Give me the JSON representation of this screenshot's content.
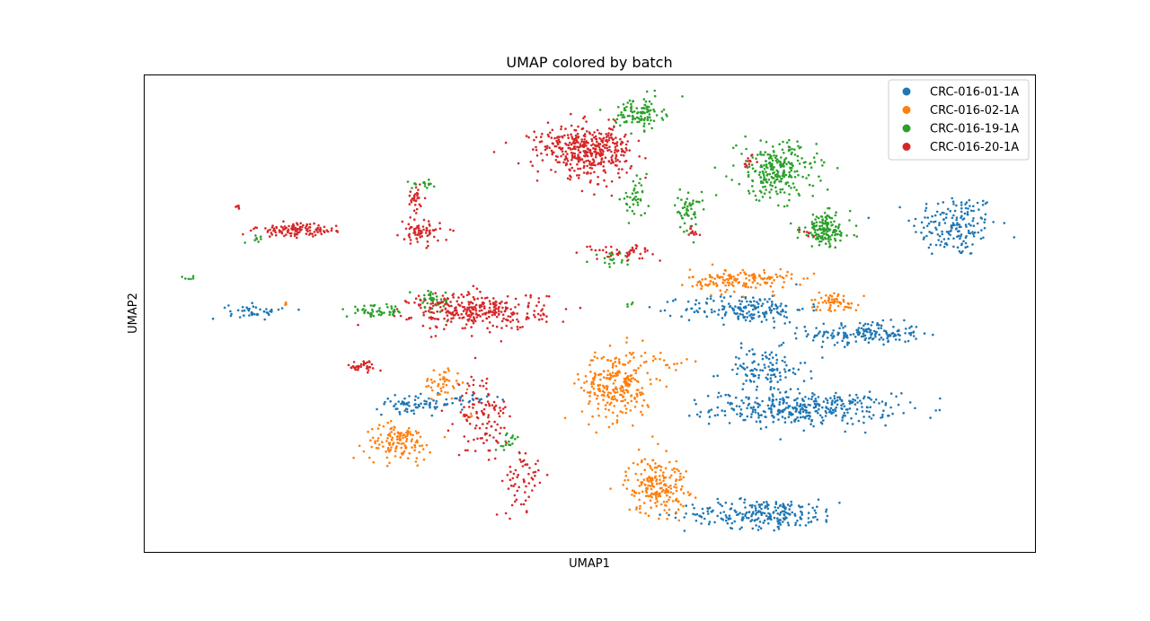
{
  "chart_data": {
    "type": "scatter",
    "title": "UMAP colored by batch",
    "xlabel": "UMAP1",
    "ylabel": "UMAP2",
    "xticks": false,
    "yticks": false,
    "grid": false,
    "legend_position": "top-right",
    "xlim": [
      0,
      100
    ],
    "ylim": [
      0,
      100
    ],
    "series": [
      {
        "name": "CRC-016-01-1A",
        "color": "#1f77b4",
        "clusters": [
          {
            "x": 91.0,
            "y": 68.5,
            "sx": 3.2,
            "sy": 4.5,
            "n": 170
          },
          {
            "x": 81.0,
            "y": 45.8,
            "sx": 4.2,
            "sy": 1.6,
            "n": 170
          },
          {
            "x": 74.0,
            "y": 30.0,
            "sx": 6.8,
            "sy": 2.2,
            "n": 360
          },
          {
            "x": 69.5,
            "y": 38.0,
            "sx": 3.2,
            "sy": 3.2,
            "n": 120
          },
          {
            "x": 67.5,
            "y": 51.0,
            "sx": 4.6,
            "sy": 2.0,
            "n": 180
          },
          {
            "x": 69.5,
            "y": 8.0,
            "sx": 5.8,
            "sy": 2.0,
            "n": 240
          },
          {
            "x": 12.5,
            "y": 50.5,
            "sx": 2.0,
            "sy": 1.0,
            "n": 45
          },
          {
            "x": 30.5,
            "y": 31.0,
            "sx": 3.0,
            "sy": 1.2,
            "n": 75
          },
          {
            "x": 36.5,
            "y": 32.0,
            "sx": 2.5,
            "sy": 0.5,
            "n": 20
          }
        ]
      },
      {
        "name": "CRC-016-02-1A",
        "color": "#ff7f0e",
        "clusters": [
          {
            "x": 53.0,
            "y": 35.0,
            "sx": 2.6,
            "sy": 5.0,
            "n": 260
          },
          {
            "x": 59.0,
            "y": 40.0,
            "sx": 1.5,
            "sy": 1.0,
            "n": 15
          },
          {
            "x": 57.5,
            "y": 14.0,
            "sx": 2.3,
            "sy": 4.0,
            "n": 200
          },
          {
            "x": 67.0,
            "y": 57.0,
            "sx": 3.8,
            "sy": 1.6,
            "n": 150
          },
          {
            "x": 77.5,
            "y": 52.5,
            "sx": 1.8,
            "sy": 1.4,
            "n": 60
          },
          {
            "x": 28.5,
            "y": 23.0,
            "sx": 2.5,
            "sy": 2.5,
            "n": 130
          },
          {
            "x": 33.5,
            "y": 35.5,
            "sx": 1.4,
            "sy": 2.2,
            "n": 45
          },
          {
            "x": 36.5,
            "y": 28.5,
            "sx": 0.6,
            "sy": 0.5,
            "n": 8
          },
          {
            "x": 15.8,
            "y": 52.0,
            "sx": 0.3,
            "sy": 0.3,
            "n": 4
          }
        ]
      },
      {
        "name": "CRC-016-19-1A",
        "color": "#2ca02c",
        "clusters": [
          {
            "x": 55.5,
            "y": 92.0,
            "sx": 1.8,
            "sy": 2.2,
            "n": 110
          },
          {
            "x": 71.0,
            "y": 80.0,
            "sx": 3.0,
            "sy": 4.0,
            "n": 250
          },
          {
            "x": 76.5,
            "y": 67.5,
            "sx": 1.9,
            "sy": 2.4,
            "n": 150
          },
          {
            "x": 61.0,
            "y": 71.5,
            "sx": 1.0,
            "sy": 2.8,
            "n": 55
          },
          {
            "x": 55.0,
            "y": 74.0,
            "sx": 1.0,
            "sy": 2.5,
            "n": 40
          },
          {
            "x": 52.5,
            "y": 61.5,
            "sx": 1.5,
            "sy": 0.8,
            "n": 20
          },
          {
            "x": 32.5,
            "y": 52.5,
            "sx": 1.2,
            "sy": 1.6,
            "n": 50
          },
          {
            "x": 26.0,
            "y": 50.5,
            "sx": 2.2,
            "sy": 0.8,
            "n": 50
          },
          {
            "x": 31.5,
            "y": 77.0,
            "sx": 1.5,
            "sy": 0.5,
            "n": 15
          },
          {
            "x": 12.5,
            "y": 65.5,
            "sx": 0.8,
            "sy": 0.8,
            "n": 8
          },
          {
            "x": 5.0,
            "y": 57.5,
            "sx": 0.4,
            "sy": 0.3,
            "n": 6
          },
          {
            "x": 54.5,
            "y": 52.0,
            "sx": 0.3,
            "sy": 0.3,
            "n": 4
          },
          {
            "x": 40.5,
            "y": 22.5,
            "sx": 0.6,
            "sy": 1.5,
            "n": 12
          },
          {
            "x": 41.5,
            "y": 24.0,
            "sx": 0.4,
            "sy": 0.4,
            "n": 5
          }
        ]
      },
      {
        "name": "CRC-016-20-1A",
        "color": "#d62728",
        "clusters": [
          {
            "x": 50.0,
            "y": 84.0,
            "sx": 3.2,
            "sy": 3.5,
            "n": 380
          },
          {
            "x": 45.5,
            "y": 86.5,
            "sx": 3.5,
            "sy": 1.4,
            "n": 40
          },
          {
            "x": 37.5,
            "y": 50.5,
            "sx": 5.0,
            "sy": 2.6,
            "n": 320
          },
          {
            "x": 17.0,
            "y": 67.5,
            "sx": 3.0,
            "sy": 0.9,
            "n": 120
          },
          {
            "x": 31.0,
            "y": 67.0,
            "sx": 1.5,
            "sy": 1.5,
            "n": 70
          },
          {
            "x": 30.5,
            "y": 74.0,
            "sx": 0.7,
            "sy": 2.0,
            "n": 30
          },
          {
            "x": 38.0,
            "y": 28.5,
            "sx": 2.0,
            "sy": 6.0,
            "n": 110
          },
          {
            "x": 42.5,
            "y": 14.5,
            "sx": 1.5,
            "sy": 4.5,
            "n": 60
          },
          {
            "x": 24.5,
            "y": 39.0,
            "sx": 1.4,
            "sy": 0.8,
            "n": 35
          },
          {
            "x": 53.5,
            "y": 63.0,
            "sx": 2.5,
            "sy": 1.0,
            "n": 45
          },
          {
            "x": 61.5,
            "y": 67.0,
            "sx": 0.6,
            "sy": 0.6,
            "n": 10
          },
          {
            "x": 68.0,
            "y": 82.0,
            "sx": 0.8,
            "sy": 1.0,
            "n": 12
          },
          {
            "x": 74.5,
            "y": 67.0,
            "sx": 0.5,
            "sy": 0.5,
            "n": 6
          },
          {
            "x": 10.5,
            "y": 72.5,
            "sx": 0.4,
            "sy": 0.3,
            "n": 5
          }
        ]
      }
    ]
  }
}
